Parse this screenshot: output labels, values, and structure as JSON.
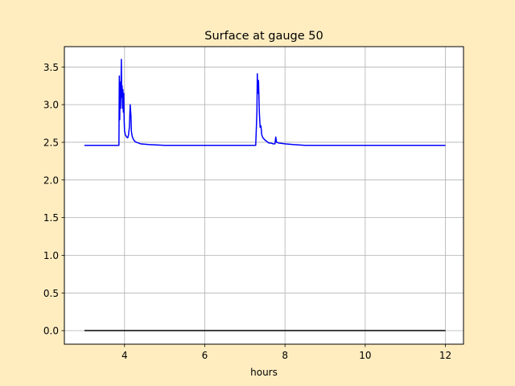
{
  "chart_data": {
    "type": "line",
    "title": "Surface at gauge 50",
    "xlabel": "hours",
    "ylabel": "",
    "xlim": [
      2.5,
      12.45
    ],
    "ylim": [
      -0.18,
      3.77
    ],
    "xticks": [
      4,
      6,
      8,
      10,
      12
    ],
    "yticks": [
      0.0,
      0.5,
      1.0,
      1.5,
      2.0,
      2.5,
      3.0,
      3.5
    ],
    "xtick_labels": [
      "4",
      "6",
      "8",
      "10",
      "12"
    ],
    "ytick_labels": [
      "0.0",
      "0.5",
      "1.0",
      "1.5",
      "2.0",
      "2.5",
      "3.0",
      "3.5"
    ],
    "grid": true,
    "legend": "none",
    "series": [
      {
        "color": "#0000ff",
        "x": [
          3.0,
          3.86,
          3.87,
          3.88,
          3.89,
          3.9,
          3.91,
          3.92,
          3.93,
          3.94,
          3.95,
          3.96,
          3.97,
          3.98,
          3.99,
          4.0,
          4.02,
          4.05,
          4.08,
          4.1,
          4.12,
          4.14,
          4.16,
          4.17,
          4.19,
          4.22,
          4.26,
          4.3,
          4.4,
          4.6,
          5.0,
          6.0,
          7.0,
          7.27,
          7.3,
          7.31,
          7.32,
          7.34,
          7.36,
          7.38,
          7.4,
          7.42,
          7.45,
          7.5,
          7.55,
          7.6,
          7.65,
          7.7,
          7.75,
          7.77,
          7.79,
          7.85,
          8.0,
          8.2,
          8.5,
          9.0,
          10.0,
          11.0,
          12.0
        ],
        "y": [
          2.46,
          2.46,
          3.38,
          2.8,
          3.3,
          2.95,
          3.15,
          3.6,
          3.1,
          3.25,
          2.95,
          3.2,
          2.9,
          3.15,
          2.8,
          2.65,
          2.6,
          2.57,
          2.56,
          2.6,
          2.7,
          3.0,
          2.85,
          2.65,
          2.58,
          2.54,
          2.51,
          2.5,
          2.48,
          2.47,
          2.46,
          2.46,
          2.46,
          2.46,
          2.9,
          3.41,
          3.15,
          3.32,
          2.9,
          2.7,
          2.72,
          2.6,
          2.56,
          2.53,
          2.51,
          2.49,
          2.49,
          2.48,
          2.48,
          2.57,
          2.5,
          2.49,
          2.48,
          2.47,
          2.46,
          2.46,
          2.46,
          2.46,
          2.46
        ]
      },
      {
        "color": "#000000",
        "x": [
          3.0,
          12.0
        ],
        "y": [
          0.0,
          0.0
        ]
      }
    ]
  }
}
